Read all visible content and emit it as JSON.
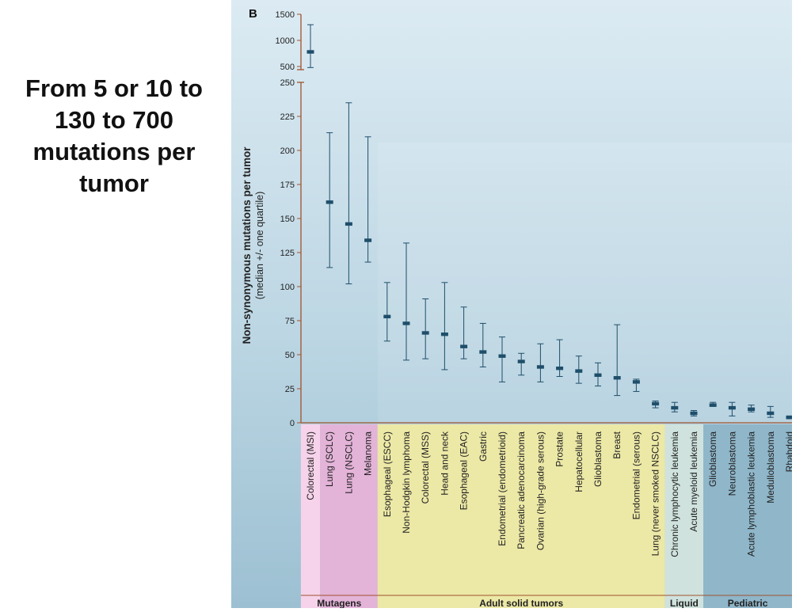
{
  "slide": {
    "text": "From 5 or 10 to\n130 to 700\nmutations per\ntumor"
  },
  "chart_data": {
    "type": "errorbar",
    "panel_label": "B",
    "ylabel": "Non-synonymous mutations per tumor",
    "ylabel_sub": "(median +/- one quartile)",
    "ylim_lower": [
      0,
      250
    ],
    "ylim_upper": [
      500,
      1500
    ],
    "yticks_lower": [
      "0",
      "25",
      "50",
      "75",
      "100",
      "125",
      "150",
      "175",
      "200",
      "225",
      "250"
    ],
    "yticks_upper": [
      "500",
      "1000",
      "1500"
    ],
    "categories": [
      "Colorectal (MSI)",
      "Lung (SCLC)",
      "Lung (NSCLC)",
      "Melanoma",
      "Esophageal (ESCC)",
      "Non-Hodgkin lymphoma",
      "Colorectal (MSS)",
      "Head and neck",
      "Esophageal (EAC)",
      "Gastric",
      "Endometrial (endometrioid)",
      "Pancreatic adenocarcinoma",
      "Ovarian (high-grade serous)",
      "Prostate",
      "Hepatocellular",
      "Glioblastoma",
      "Breast",
      "Endometrial (serous)",
      "Lung (never smoked NSCLC)",
      "Chronic lymphocytic leukemia",
      "Acute myeloid leukemia",
      "Glioblastoma",
      "Neuroblastoma",
      "Acute lymphoblastic leukemia",
      "Medulloblastoma",
      "Rhabdoid"
    ],
    "median": [
      780,
      162,
      146,
      134,
      78,
      73,
      66,
      65,
      56,
      52,
      49,
      45,
      41,
      40,
      38,
      35,
      33,
      30,
      14,
      11,
      7,
      13,
      11,
      10,
      7,
      4
    ],
    "lower": [
      480,
      114,
      102,
      118,
      60,
      46,
      47,
      39,
      47,
      41,
      30,
      35,
      30,
      34,
      29,
      27,
      20,
      23,
      11,
      8,
      5,
      12,
      5,
      8,
      4,
      3
    ],
    "upper": [
      1300,
      213,
      235,
      210,
      103,
      132,
      91,
      103,
      85,
      73,
      63,
      51,
      58,
      61,
      49,
      44,
      72,
      32,
      16,
      15,
      9,
      15,
      15,
      13,
      12,
      5
    ],
    "groups": [
      {
        "name": "Mutagens",
        "start": 0,
        "end": 3,
        "color": "#e3b3d8",
        "light": "#f6d3ea"
      },
      {
        "name": "Adult solid tumors",
        "start": 4,
        "end": 18,
        "color": "#ece8a6",
        "light": "#ece8a6"
      },
      {
        "name": "Liquid",
        "start": 19,
        "end": 20,
        "color": "#cfe2dd",
        "light": "#cfe2dd"
      },
      {
        "name": "Pediatric",
        "start": 21,
        "end": 25,
        "color": "#8fb6c9",
        "light": "#8fb6c9"
      }
    ],
    "colors": {
      "marker": "#1e4e6a",
      "axis": "#a0522d",
      "bg_top": "#dcebf3",
      "bg_bottom": "#9cc0d2"
    }
  }
}
